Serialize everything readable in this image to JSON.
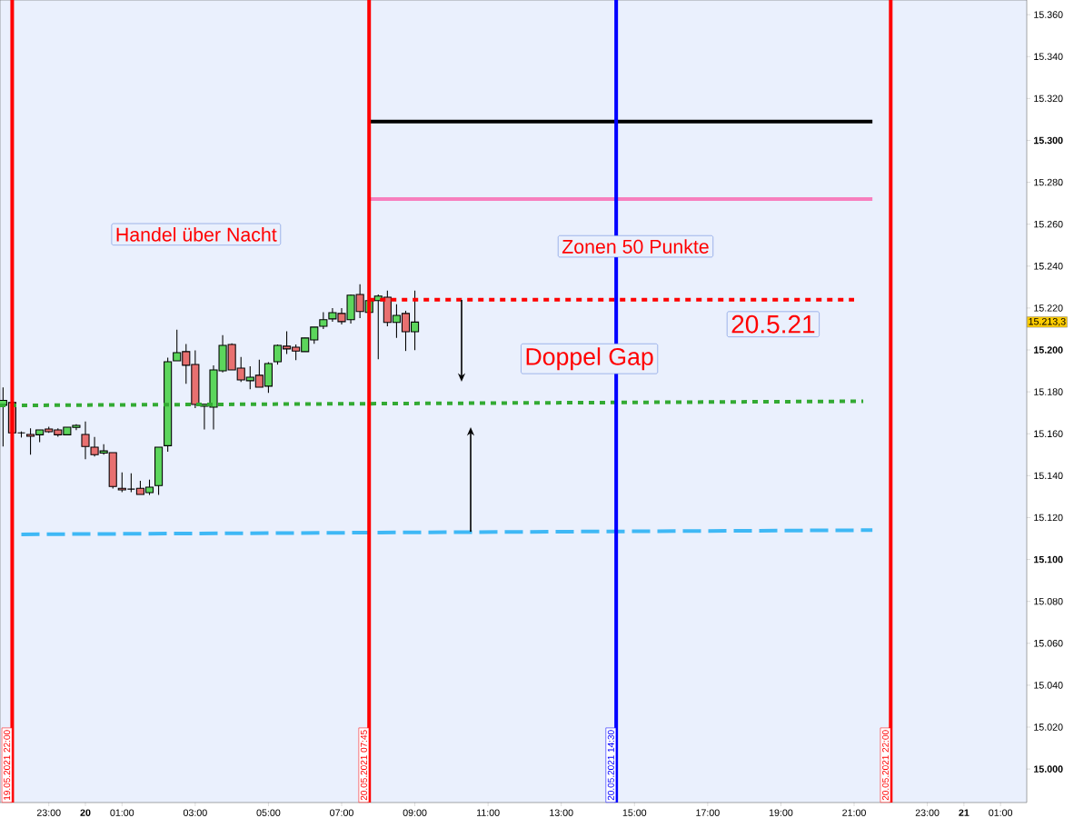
{
  "chart_data": {
    "type": "candlestick",
    "x": [
      "2021-05-19T21:45",
      "2021-05-19T22:00",
      "2021-05-19T22:15",
      "2021-05-19T22:30",
      "2021-05-19T22:45",
      "2021-05-19T23:00",
      "2021-05-19T23:15",
      "2021-05-19T23:30",
      "2021-05-19T23:45",
      "2021-05-20T00:00",
      "2021-05-20T00:15",
      "2021-05-20T00:30",
      "2021-05-20T00:45",
      "2021-05-20T01:00",
      "2021-05-20T01:15",
      "2021-05-20T01:30",
      "2021-05-20T01:45",
      "2021-05-20T02:00",
      "2021-05-20T02:15",
      "2021-05-20T02:30",
      "2021-05-20T02:45",
      "2021-05-20T03:00",
      "2021-05-20T03:15",
      "2021-05-20T03:30",
      "2021-05-20T03:45",
      "2021-05-20T04:00",
      "2021-05-20T04:15",
      "2021-05-20T04:30",
      "2021-05-20T04:45",
      "2021-05-20T05:00",
      "2021-05-20T05:15",
      "2021-05-20T05:30",
      "2021-05-20T05:45",
      "2021-05-20T06:00",
      "2021-05-20T06:15",
      "2021-05-20T06:30",
      "2021-05-20T06:45",
      "2021-05-20T07:00",
      "2021-05-20T07:15",
      "2021-05-20T07:30",
      "2021-05-20T07:45",
      "2021-05-20T08:00",
      "2021-05-20T08:15",
      "2021-05-20T08:30",
      "2021-05-20T08:45",
      "2021-05-20T09:00"
    ],
    "ohlc": [
      [
        15173.6,
        15182.1,
        15153.9,
        15175.9
      ],
      [
        15174.9,
        15175,
        15160,
        15160.4
      ],
      [
        15160.4,
        15161.1,
        15158.2,
        15160.4
      ],
      [
        15159.7,
        15162.6,
        15150,
        15158.8
      ],
      [
        15159.5,
        15161.8,
        15156,
        15161.8
      ],
      [
        15162.3,
        15163.3,
        15160.4,
        15161
      ],
      [
        15161.8,
        15162.6,
        15158.6,
        15159.5
      ],
      [
        15159.5,
        15163.1,
        15159.5,
        15163.1
      ],
      [
        15163,
        15164.6,
        15161.7,
        15164
      ],
      [
        15159.7,
        15165.9,
        15147.8,
        15153.9
      ],
      [
        15153.6,
        15158.5,
        15149.1,
        15150
      ],
      [
        15150.8,
        15155,
        15150,
        15151.8
      ],
      [
        15151,
        15151,
        15133.9,
        15134.8
      ],
      [
        15134,
        15141.6,
        15132.1,
        15133.2
      ],
      [
        15133.6,
        15141.1,
        15132.1,
        15133.6
      ],
      [
        15134,
        15137.6,
        15131,
        15131
      ],
      [
        15131.9,
        15138.1,
        15130.8,
        15134.5
      ],
      [
        15135.3,
        15153.6,
        15130.8,
        15153.6
      ],
      [
        15154.3,
        15196.3,
        15151.4,
        15194.4
      ],
      [
        15194.8,
        15209.7,
        15194.8,
        15198.7
      ],
      [
        15199.2,
        15202.8,
        15183.8,
        15192.7
      ],
      [
        15193.1,
        15199.8,
        15172.2,
        15174
      ],
      [
        15173.1,
        15174.1,
        15162.1,
        15174.1
      ],
      [
        15172.7,
        15192.6,
        15162.1,
        15190.5
      ],
      [
        15190,
        15207.1,
        15189.3,
        15202.2
      ],
      [
        15202.6,
        15203.1,
        15190.5,
        15190.5
      ],
      [
        15191.3,
        15196.6,
        15184.7,
        15185.7
      ],
      [
        15185.3,
        15192.2,
        15181.2,
        15187
      ],
      [
        15187.9,
        15195.3,
        15182.2,
        15182.2
      ],
      [
        15182.7,
        15194.2,
        15179.5,
        15193.5
      ],
      [
        15194.4,
        15202.6,
        15193,
        15202.2
      ],
      [
        15201.8,
        15208.9,
        15198.1,
        15200.5
      ],
      [
        15201.3,
        15202.6,
        15195.1,
        15199.5
      ],
      [
        15199.2,
        15205.7,
        15199.2,
        15205.7
      ],
      [
        15204.8,
        15210.9,
        15202.9,
        15210.9
      ],
      [
        15211.3,
        15218,
        15210,
        15214.4
      ],
      [
        15214.8,
        15220,
        15213.5,
        15217.8
      ],
      [
        15217.4,
        15220,
        15212.2,
        15213.5
      ],
      [
        15214.4,
        15226.5,
        15212.6,
        15226.1
      ],
      [
        15226.5,
        15231.3,
        15215.2,
        15218.3
      ],
      [
        15217.9,
        15223.5,
        15217.9,
        15223.5
      ],
      [
        15223.5,
        15226.5,
        15195.6,
        15225.7
      ],
      [
        15225.2,
        15228.3,
        15211.3,
        15213.1
      ],
      [
        15213.1,
        15221.8,
        15205.7,
        15216.5
      ],
      [
        15217.4,
        15218.7,
        15199.5,
        15208.7
      ],
      [
        15208.7,
        15228.3,
        15199.9,
        15213.3
      ]
    ],
    "series": [
      {
        "type": "line",
        "x": [
          "2021-05-20T07:45",
          "2021-05-20T21:30"
        ],
        "values": [
          15309,
          15309
        ],
        "color": "#000000",
        "line_style": "solid"
      },
      {
        "type": "line",
        "x": [
          "2021-05-20T07:45",
          "2021-05-20T21:30"
        ],
        "values": [
          15272,
          15272
        ],
        "color": "#f77fbe",
        "line_style": "solid"
      },
      {
        "type": "line",
        "x": [
          "2021-05-20T07:45",
          "2021-05-20T21:00"
        ],
        "values": [
          15224,
          15224
        ],
        "color": "#ff0000",
        "line_style": "dotted"
      },
      {
        "type": "line",
        "x": [
          "2021-05-19T21:40",
          "2021-05-20T21:15"
        ],
        "values": [
          15173.5,
          15175.5
        ],
        "color": "#33aa33",
        "line_style": "dotted"
      },
      {
        "type": "line",
        "x": [
          "2021-05-19T22:15",
          "2021-05-20T21:30"
        ],
        "values": [
          15112,
          15114
        ],
        "color": "#3fb8f5",
        "line_style": "dashed"
      }
    ],
    "ref_lines": [
      {
        "axis": "x",
        "value": "2021-05-19T22:00",
        "label": "19.05.2021 22:00",
        "color": "#ff0000"
      },
      {
        "axis": "x",
        "value": "2021-05-20T07:45",
        "label": "20.05.2021 07:45",
        "color": "#ff0000"
      },
      {
        "axis": "x",
        "value": "2021-05-20T14:30",
        "label": "20.05.2021 14:30",
        "color": "#0000ff"
      },
      {
        "axis": "x",
        "value": "2021-05-20T22:00",
        "label": "20.05.2021 22:00",
        "color": "#ff0000"
      }
    ],
    "annotations": [
      "Handel über Nacht",
      "Zonen 50  Punkte",
      "20.5.21",
      "Doppel Gap",
      "15.213,3"
    ],
    "xlim": [
      "2021-05-19T21:40",
      "2021-05-21T01:43"
    ],
    "ylim": [
      14984,
      15367
    ],
    "xticks": [
      {
        "value": "2021-05-19T23:00",
        "label": "23:00"
      },
      {
        "value": "2021-05-20T00:00",
        "label": "20"
      },
      {
        "value": "2021-05-20T01:00",
        "label": "01:00"
      },
      {
        "value": "2021-05-20T03:00",
        "label": "03:00"
      },
      {
        "value": "2021-05-20T05:00",
        "label": "05:00"
      },
      {
        "value": "2021-05-20T07:00",
        "label": "07:00"
      },
      {
        "value": "2021-05-20T09:00",
        "label": "09:00"
      },
      {
        "value": "2021-05-20T11:00",
        "label": "11:00"
      },
      {
        "value": "2021-05-20T13:00",
        "label": "13:00"
      },
      {
        "value": "2021-05-20T15:00",
        "label": "15:00"
      },
      {
        "value": "2021-05-20T17:00",
        "label": "17:00"
      },
      {
        "value": "2021-05-20T19:00",
        "label": "19:00"
      },
      {
        "value": "2021-05-20T21:00",
        "label": "21:00"
      },
      {
        "value": "2021-05-20T23:00",
        "label": "23:00"
      },
      {
        "value": "2021-05-21T00:00",
        "label": "21"
      },
      {
        "value": "2021-05-21T01:00",
        "label": "01:00"
      }
    ],
    "yticks": [
      {
        "value": 15000,
        "label": "15.000"
      },
      {
        "value": 15020,
        "label": "15.020"
      },
      {
        "value": 15040,
        "label": "15.040"
      },
      {
        "value": 15060,
        "label": "15.060"
      },
      {
        "value": 15080,
        "label": "15.080"
      },
      {
        "value": 15100,
        "label": "15.100"
      },
      {
        "value": 15120,
        "label": "15.120"
      },
      {
        "value": 15140,
        "label": "15.140"
      },
      {
        "value": 15160,
        "label": "15.160"
      },
      {
        "value": 15180,
        "label": "15.180"
      },
      {
        "value": 15200,
        "label": "15.200"
      },
      {
        "value": 15220,
        "label": "15.220"
      },
      {
        "value": 15240,
        "label": "15.240"
      },
      {
        "value": 15260,
        "label": "15.260"
      },
      {
        "value": 15280,
        "label": "15.280"
      },
      {
        "value": 15300,
        "label": "15.300"
      },
      {
        "value": 15320,
        "label": "15.320"
      },
      {
        "value": 15340,
        "label": "15.340"
      },
      {
        "value": 15360,
        "label": "15.360"
      }
    ]
  }
}
